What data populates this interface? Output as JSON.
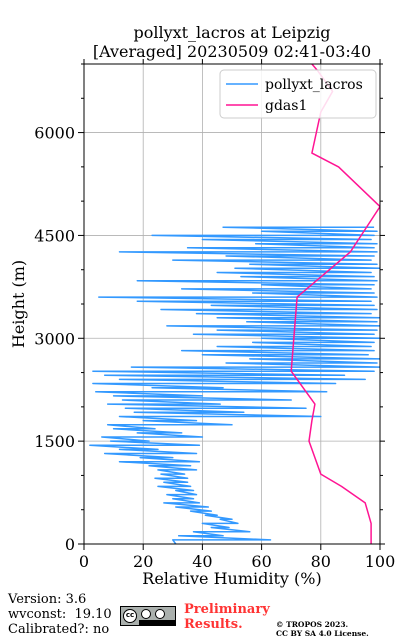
{
  "colors": {
    "pollyxt": "#3399ff",
    "gdas": "#ff1493",
    "grid": "#b0b0b0",
    "preliminary": "#ff3333"
  },
  "chart_data": {
    "type": "line",
    "title_line1": "pollyxt_lacros at Leipzig",
    "title_line2": "[Averaged] 20230509 02:41-03:40",
    "xlabel": "Relative Humidity (%)",
    "ylabel": "Height (m)",
    "xlim": [
      0,
      100
    ],
    "ylim": [
      0,
      7000
    ],
    "xticks": [
      "0",
      "20",
      "40",
      "60",
      "80",
      "100"
    ],
    "yticks": [
      "0",
      "1500",
      "3000",
      "4500",
      "6000"
    ],
    "grid": true,
    "legend_position": "top-right",
    "series": [
      {
        "name": "pollyxt_lacros",
        "orientation": "vertical-profile",
        "points": [
          [
            31,
            0
          ],
          [
            30,
            60
          ],
          [
            63,
            60
          ],
          [
            32,
            120
          ],
          [
            47,
            120
          ],
          [
            37,
            180
          ],
          [
            56,
            180
          ],
          [
            43,
            240
          ],
          [
            49,
            240
          ],
          [
            40,
            300
          ],
          [
            52,
            300
          ],
          [
            46,
            360
          ],
          [
            50,
            360
          ],
          [
            41,
            420
          ],
          [
            45,
            420
          ],
          [
            36,
            480
          ],
          [
            43,
            480
          ],
          [
            31,
            540
          ],
          [
            42,
            540
          ],
          [
            27,
            600
          ],
          [
            39,
            600
          ],
          [
            30,
            660
          ],
          [
            37,
            660
          ],
          [
            28,
            720
          ],
          [
            38,
            720
          ],
          [
            31,
            780
          ],
          [
            37,
            780
          ],
          [
            25,
            840
          ],
          [
            36,
            840
          ],
          [
            27,
            900
          ],
          [
            35,
            900
          ],
          [
            24,
            960
          ],
          [
            35,
            960
          ],
          [
            26,
            1020
          ],
          [
            34,
            1020
          ],
          [
            25,
            1080
          ],
          [
            38,
            1080
          ],
          [
            22,
            1140
          ],
          [
            36,
            1140
          ],
          [
            12,
            1200
          ],
          [
            39,
            1200
          ],
          [
            19,
            1260
          ],
          [
            30,
            1260
          ],
          [
            7,
            1320
          ],
          [
            38,
            1320
          ],
          [
            12,
            1380
          ],
          [
            25,
            1380
          ],
          [
            2,
            1440
          ],
          [
            39,
            1440
          ],
          [
            9,
            1500
          ],
          [
            22,
            1500
          ],
          [
            6,
            1560
          ],
          [
            40,
            1560
          ],
          [
            18,
            1620
          ],
          [
            33,
            1620
          ],
          [
            10,
            1680
          ],
          [
            24,
            1680
          ],
          [
            8,
            1740
          ],
          [
            50,
            1740
          ],
          [
            20,
            1800
          ],
          [
            38,
            1800
          ],
          [
            12,
            1860
          ],
          [
            80,
            1860
          ],
          [
            17,
            1920
          ],
          [
            54,
            1920
          ],
          [
            14,
            1980
          ],
          [
            75,
            1980
          ],
          [
            8,
            2040
          ],
          [
            46,
            2040
          ],
          [
            13,
            2100
          ],
          [
            70,
            2100
          ],
          [
            10,
            2160
          ],
          [
            40,
            2160
          ],
          [
            4,
            2220
          ],
          [
            82,
            2220
          ],
          [
            23,
            2280
          ],
          [
            47,
            2280
          ],
          [
            3,
            2340
          ],
          [
            85,
            2340
          ],
          [
            12,
            2400
          ],
          [
            95,
            2400
          ],
          [
            7,
            2460
          ],
          [
            88,
            2460
          ],
          [
            3,
            2520
          ],
          [
            98,
            2520
          ],
          [
            16,
            2580
          ],
          [
            100,
            2580
          ],
          [
            48,
            2640
          ],
          [
            99,
            2640
          ],
          [
            56,
            2700
          ],
          [
            100,
            2700
          ],
          [
            40,
            2760
          ],
          [
            96,
            2760
          ],
          [
            33,
            2820
          ],
          [
            98,
            2820
          ],
          [
            45,
            2880
          ],
          [
            97,
            2880
          ],
          [
            57,
            2940
          ],
          [
            98,
            2940
          ],
          [
            60,
            3000
          ],
          [
            100,
            3000
          ],
          [
            37,
            3060
          ],
          [
            98,
            3060
          ],
          [
            45,
            3120
          ],
          [
            99,
            3120
          ],
          [
            28,
            3180
          ],
          [
            100,
            3180
          ],
          [
            55,
            3240
          ],
          [
            99,
            3240
          ],
          [
            45,
            3300
          ],
          [
            100,
            3300
          ],
          [
            38,
            3360
          ],
          [
            97,
            3360
          ],
          [
            26,
            3420
          ],
          [
            99,
            3420
          ],
          [
            43,
            3480
          ],
          [
            98,
            3480
          ],
          [
            18,
            3540
          ],
          [
            97,
            3540
          ],
          [
            5,
            3600
          ],
          [
            99,
            3600
          ],
          [
            57,
            3660
          ],
          [
            98,
            3660
          ],
          [
            33,
            3720
          ],
          [
            97,
            3720
          ],
          [
            60,
            3780
          ],
          [
            98,
            3780
          ],
          [
            18,
            3840
          ],
          [
            99,
            3840
          ],
          [
            53,
            3900
          ],
          [
            98,
            3900
          ],
          [
            45,
            3960
          ],
          [
            97,
            3960
          ],
          [
            51,
            4020
          ],
          [
            100,
            4020
          ],
          [
            56,
            4080
          ],
          [
            99,
            4080
          ],
          [
            30,
            4140
          ],
          [
            97,
            4140
          ],
          [
            48,
            4200
          ],
          [
            98,
            4200
          ],
          [
            12,
            4260
          ],
          [
            99,
            4260
          ],
          [
            35,
            4320
          ],
          [
            98,
            4320
          ],
          [
            58,
            4380
          ],
          [
            99,
            4380
          ],
          [
            40,
            4440
          ],
          [
            97,
            4440
          ],
          [
            23,
            4500
          ],
          [
            98,
            4500
          ],
          [
            60,
            4560
          ],
          [
            99,
            4560
          ],
          [
            47,
            4620
          ],
          [
            98,
            4620
          ]
        ]
      },
      {
        "name": "gdas1",
        "orientation": "vertical-profile",
        "points": [
          [
            97,
            0
          ],
          [
            97,
            300
          ],
          [
            95,
            600
          ],
          [
            87,
            840
          ],
          [
            80,
            1020
          ],
          [
            76,
            1500
          ],
          [
            77,
            1800
          ],
          [
            78,
            2040
          ],
          [
            70,
            2520
          ],
          [
            72,
            3600
          ],
          [
            90,
            4260
          ],
          [
            100,
            4920
          ],
          [
            86,
            5500
          ],
          [
            77,
            5700
          ],
          [
            80,
            6300
          ],
          [
            84,
            6600
          ],
          [
            79,
            6900
          ],
          [
            77,
            7000
          ]
        ]
      }
    ]
  },
  "footer": {
    "version": "Version: 3.6",
    "wvconst": "wvconst:  19.10",
    "calibrated": "Calibrated?: no",
    "preliminary_line1": "Preliminary",
    "preliminary_line2": "Results.",
    "copyright_line1": "© TROPOS 2023.",
    "copyright_line2": "CC BY SA 4.0 License.",
    "badge_icon": "cc-by-sa-icon"
  }
}
